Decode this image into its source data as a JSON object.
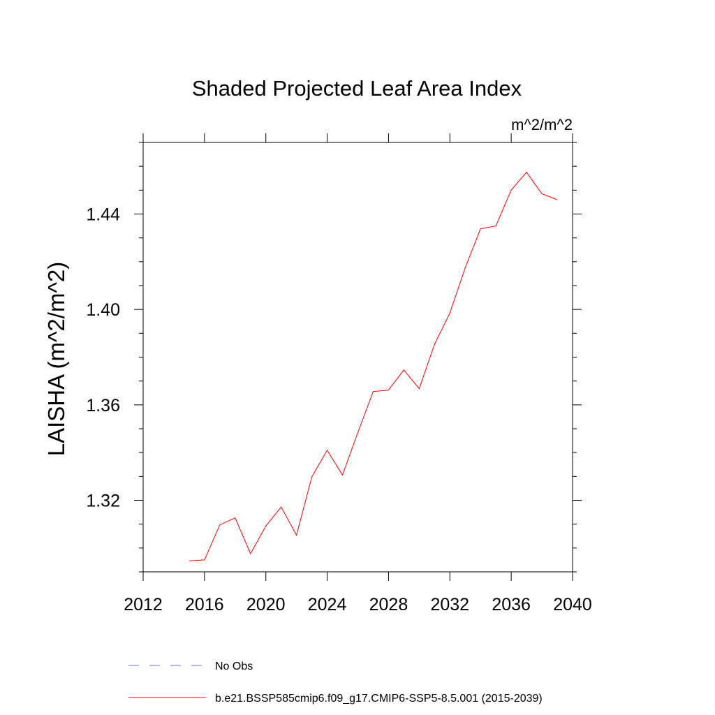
{
  "chart_data": {
    "type": "line",
    "title": "Shaded Projected Leaf Area Index",
    "units": "m^2/m^2",
    "xlabel": "",
    "ylabel": "LAISHA  (m^2/m^2)",
    "xlim": [
      2012,
      2040
    ],
    "ylim": [
      1.29,
      1.47
    ],
    "xticks": [
      2012,
      2016,
      2020,
      2024,
      2028,
      2032,
      2036,
      2040
    ],
    "xtick_labels": [
      "2012",
      "2016",
      "2020",
      "2024",
      "2028",
      "2032",
      "2036",
      "2040"
    ],
    "yticks": [
      1.32,
      1.36,
      1.4,
      1.44
    ],
    "ytick_labels": [
      "1.32",
      "1.36",
      "1.40",
      "1.44"
    ],
    "series": [
      {
        "name": "b.e21.BSSP585cmip6.f09_g17.CMIP6-SSP5-8.5.001 (2015-2039)",
        "color": "#ff0000",
        "dash": "solid",
        "x": [
          2015,
          2016,
          2017,
          2018,
          2019,
          2020,
          2021,
          2022,
          2023,
          2024,
          2025,
          2026,
          2027,
          2028,
          2029,
          2030,
          2031,
          2032,
          2033,
          2034,
          2035,
          2036,
          2037,
          2038,
          2039
        ],
        "values": [
          1.2946,
          1.295,
          1.3097,
          1.3126,
          1.2976,
          1.3092,
          1.3172,
          1.3054,
          1.3298,
          1.341,
          1.3306,
          1.3484,
          1.3656,
          1.3662,
          1.3746,
          1.3668,
          1.3854,
          1.3985,
          1.4175,
          1.4338,
          1.435,
          1.45,
          1.4575,
          1.4485,
          1.446
        ]
      }
    ],
    "legend": [
      {
        "label": "No Obs",
        "color": "#6a6ae0",
        "dash": "dashed"
      },
      {
        "label": "b.e21.BSSP585cmip6.f09_g17.CMIP6-SSP5-8.5.001 (2015-2039)",
        "color": "#ff0000",
        "dash": "solid"
      }
    ],
    "legend_position": "bottom",
    "grid": false
  }
}
